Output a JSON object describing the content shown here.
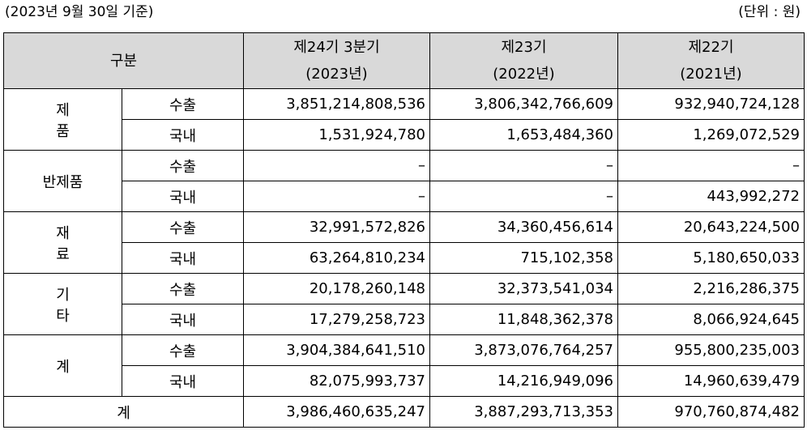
{
  "caption": {
    "left": "(2023년 9월 30일 기준)",
    "right": "(단위 : 원)"
  },
  "header": {
    "category": "구분",
    "periods": [
      {
        "line1": "제24기 3분기",
        "line2": "(2023년)"
      },
      {
        "line1": "제23기",
        "line2": "(2022년)"
      },
      {
        "line1": "제22기",
        "line2": "(2021년)"
      }
    ]
  },
  "groups": [
    {
      "name": "제 품",
      "rows": [
        {
          "type": "수출",
          "values": [
            "3,851,214,808,536",
            "3,806,342,766,609",
            "932,940,724,128"
          ]
        },
        {
          "type": "국내",
          "values": [
            "1,531,924,780",
            "1,653,484,360",
            "1,269,072,529"
          ]
        }
      ]
    },
    {
      "name": "반제품",
      "rows": [
        {
          "type": "수출",
          "values": [
            "–",
            "–",
            "–"
          ]
        },
        {
          "type": "국내",
          "values": [
            "–",
            "–",
            "443,992,272"
          ]
        }
      ]
    },
    {
      "name": "재 료",
      "rows": [
        {
          "type": "수출",
          "values": [
            "32,991,572,826",
            "34,360,456,614",
            "20,643,224,500"
          ]
        },
        {
          "type": "국내",
          "values": [
            "63,264,810,234",
            "715,102,358",
            "5,180,650,033"
          ]
        }
      ]
    },
    {
      "name": "기 타",
      "rows": [
        {
          "type": "수출",
          "values": [
            "20,178,260,148",
            "32,373,541,034",
            "2,216,286,375"
          ]
        },
        {
          "type": "국내",
          "values": [
            "17,279,258,723",
            "11,848,362,378",
            "8,066,924,645"
          ]
        }
      ]
    },
    {
      "name": "계",
      "rows": [
        {
          "type": "수출",
          "values": [
            "3,904,384,641,510",
            "3,873,076,764,257",
            "955,800,235,003"
          ]
        },
        {
          "type": "국내",
          "values": [
            "82,075,993,737",
            "14,216,949,096",
            "14,960,639,479"
          ]
        }
      ]
    }
  ],
  "total": {
    "label": "계",
    "values": [
      "3,986,460,635,247",
      "3,887,293,713,353",
      "970,760,874,482"
    ]
  }
}
